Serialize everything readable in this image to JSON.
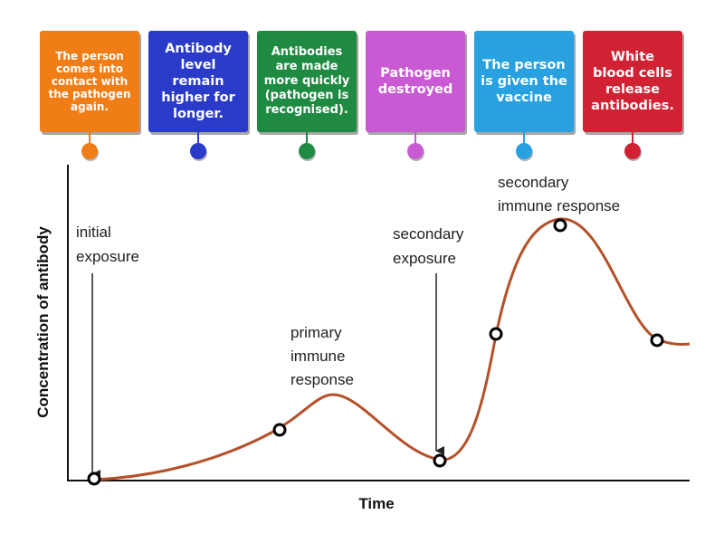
{
  "tiles": [
    {
      "text": "The person comes into contact with the pathogen again.",
      "color": "#f07d15"
    },
    {
      "text": "Antibody level remain higher for longer.",
      "color": "#2a3bc9"
    },
    {
      "text": "Antibodies are made more quickly (pathogen is recognised).",
      "color": "#1e8a42"
    },
    {
      "text": "Pathogen destroyed",
      "color": "#c95ad3"
    },
    {
      "text": "The person is given the vaccine",
      "color": "#29a1e0"
    },
    {
      "text": "White blood cells release antibodies.",
      "color": "#d12234"
    }
  ],
  "graph": {
    "y_axis_label": "Concentration of antibody",
    "x_axis_label": "Time",
    "curve_color": "#b5512a",
    "annotations": {
      "initial_line1": "initial",
      "initial_line2": "exposure",
      "secondary_exp_line1": "secondary",
      "secondary_exp_line2": "exposure",
      "primary_line1": "primary",
      "primary_line2": "immune",
      "primary_line3": "response",
      "secondary_resp_line1": "secondary",
      "secondary_resp_line2": "immune response"
    }
  }
}
